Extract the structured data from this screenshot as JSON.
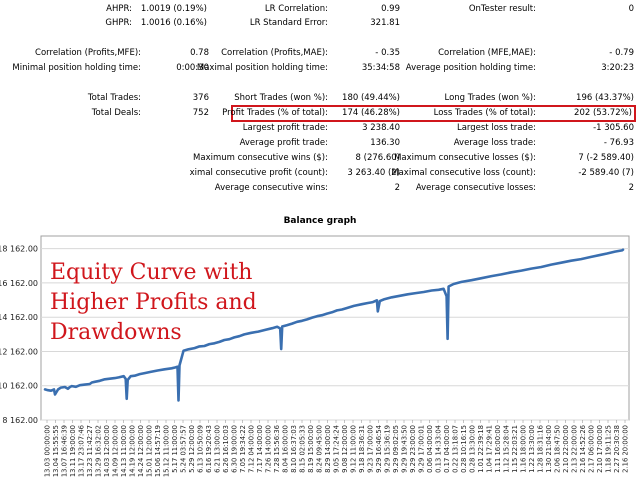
{
  "stats": {
    "r1": [
      {
        "label": "AHPR:",
        "value": "1.0019 (0.19%)"
      },
      {
        "label": "LR Correlation:",
        "value": "0.99"
      },
      {
        "label": "OnTester result:",
        "value": "0"
      }
    ],
    "r2": [
      {
        "label": "GHPR:",
        "value": "1.0016 (0.16%)"
      },
      {
        "label": "LR Standard Error:",
        "value": "321.81"
      }
    ],
    "r3": [
      {
        "label": "Correlation (Profits,MFE):",
        "value": "0.78"
      },
      {
        "label": "Correlation (Profits,MAE):",
        "value": "- 0.35"
      },
      {
        "label": "Correlation (MFE,MAE):",
        "value": "- 0.79"
      }
    ],
    "r4": [
      {
        "label": "Minimal position holding time:",
        "value": "0:00:30"
      },
      {
        "label": "Maximal position holding time:",
        "value": "35:34:58"
      },
      {
        "label": "Average position holding time:",
        "value": "3:20:23"
      }
    ],
    "r5": [
      {
        "label": "Total Trades:",
        "value": "376"
      },
      {
        "label": "Short Trades (won %):",
        "value": "180 (49.44%)"
      },
      {
        "label": "Long Trades (won %):",
        "value": "196 (43.37%)"
      }
    ],
    "r6": [
      {
        "label": "Total Deals:",
        "value": "752"
      },
      {
        "label": "Profit Trades (% of total):",
        "value": "174 (46.28%)"
      },
      {
        "label": "Loss Trades (% of total):",
        "value": "202 (53.72%)"
      }
    ],
    "r7": [
      {
        "label": "Largest profit trade:",
        "value": "3 238.40"
      },
      {
        "label": "Largest loss trade:",
        "value": "-1 305.60"
      }
    ],
    "r8": [
      {
        "label": "Average profit trade:",
        "value": "136.30"
      },
      {
        "label": "Average loss trade:",
        "value": "- 76.93"
      }
    ],
    "r9": [
      {
        "label": "Maximum consecutive wins ($):",
        "value": "8 (276.60)"
      },
      {
        "label": "Maximum consecutive losses ($):",
        "value": "7 (-2 589.40)"
      }
    ],
    "r10": [
      {
        "label": "ximal consecutive profit (count):",
        "value": "3 263.40 (2)"
      },
      {
        "label": "Maximal consecutive loss (count):",
        "value": "-2 589.40 (7)"
      }
    ],
    "r11": [
      {
        "label": "Average consecutive wins:",
        "value": "2"
      },
      {
        "label": "Average consecutive losses:",
        "value": "2"
      }
    ]
  },
  "overlay_text": [
    "Equity Curve with",
    "Higher Profits and",
    "Drawdowns"
  ],
  "colors": {
    "line": "#3a6fb0",
    "highlight": "#d0161c",
    "grid": "#d8d8d8"
  },
  "chart_data": {
    "type": "line",
    "title": "Balance graph",
    "xlabel": "",
    "ylabel": "",
    "y_ticks": [
      "8 162.00",
      "10 162.00",
      "12 162.00",
      "14 162.00",
      "16 162.00",
      "18 162.00"
    ],
    "ylim": [
      8162,
      18900
    ],
    "x_tick_labels": [
      "13.03 00:00:00",
      "13.04 15:55:55",
      "13.07 16:46:39",
      "13.11 19:00:00",
      "13.17 23:07:46",
      "13.23 11:42:27",
      "13.29 16:32:02",
      "14.03 12:00:00",
      "14.09 12:00:00",
      "14.13 11:00:00",
      "14.19 12:00:00",
      "14.24 12:00:00",
      "15.01 12:00:00",
      "15.06 14:57:19",
      "15.12 11:00:00",
      "5.17 11:00:00",
      "5.24 03:57:57",
      "5.29 12:00:00",
      "6.13 10:50:09",
      "6.16 19:20:43",
      "6.21 13:00:00",
      "6.26 16:10:03",
      "6.30 19:00:00",
      "7.05 19:34:22",
      "7.12 04:00:00",
      "7.17 14:00:00",
      "7.26 14:00:00",
      "7.28 15:56:36",
      "8.04 16:00:00",
      "8.10 16:37:03",
      "8.15 02:05:33",
      "8.19 15:00:00",
      "8.24 09:45:00",
      "8.29 14:00:00",
      "9.05 17:24:24",
      "9.08 12:00:00",
      "9.12 11:00:00",
      "9.18 18:36:31",
      "9.23 17:00:00",
      "9.29 16:46:54",
      "9.29 15:36:19",
      "9.29 09:02:05",
      "9.29 19:43:50",
      "9.29 23:00:00",
      "9.29 17:00:01",
      "0.06 04:00:00",
      "0.13 14:33:04",
      "0.17 04:00:00",
      "0.22 13:18:07",
      "0.28 10:16:15",
      "0.28 13:30:00",
      "1.01 22:39:18",
      "1.04 17:29:41",
      "1.11 16:00:00",
      "1.12 15:28:04",
      "1.15 22:03:21",
      "1.16 18:00:00",
      "1.22 13:30:00",
      "1.28 18:31:16",
      "1.30 21:04:00",
      "2.06 18:47:50",
      "2.10 22:00:00",
      "2.13 22:00:00",
      "2.16 14:52:26",
      "2.17 06:00:00",
      "2.10 17:00:00",
      "1.18 19:11:25",
      "2.27 20:30:38",
      "2.16 20:00:00"
    ],
    "x": [
      0,
      3,
      6,
      9,
      10,
      13,
      16,
      20,
      23,
      25,
      27,
      31,
      35,
      40,
      45,
      47,
      50,
      55,
      60,
      65,
      70,
      74,
      79,
      81,
      82,
      83,
      86,
      90,
      95,
      100,
      106,
      113,
      120,
      127,
      131,
      133,
      134,
      135,
      139,
      144,
      150,
      155,
      160,
      165,
      170,
      175,
      180,
      185,
      190,
      195,
      200,
      207,
      214,
      221,
      228,
      233,
      236,
      237,
      238,
      243,
      248,
      253,
      258,
      263,
      268,
      273,
      278,
      283,
      288,
      293,
      298,
      303,
      310,
      318,
      324,
      329,
      333,
      334,
      336,
      340,
      348,
      356,
      364,
      372,
      380,
      388,
      395,
      400,
      403,
      404,
      405,
      410,
      418,
      428,
      438,
      448,
      458,
      468,
      478,
      488,
      498,
      508,
      518,
      528,
      538,
      548,
      556,
      564,
      572,
      579,
      580
    ],
    "y": [
      9950,
      9900,
      9870,
      9950,
      9650,
      9940,
      10050,
      10090,
      9980,
      10090,
      10140,
      10100,
      10190,
      10230,
      10260,
      10350,
      10390,
      10450,
      10540,
      10570,
      10610,
      10650,
      10720,
      10560,
      9400,
      10500,
      10720,
      10750,
      10840,
      10900,
      10970,
      11050,
      11120,
      11180,
      11230,
      11270,
      9300,
      11350,
      12200,
      12290,
      12360,
      12460,
      12480,
      12590,
      12640,
      12720,
      12830,
      12880,
      12980,
      13050,
      13160,
      13250,
      13320,
      13420,
      13520,
      13600,
      13500,
      12300,
      13620,
      13700,
      13790,
      13890,
      13950,
      14030,
      14140,
      14220,
      14280,
      14370,
      14450,
      14560,
      14610,
      14700,
      14820,
      14920,
      14990,
      15040,
      15150,
      14500,
      15100,
      15200,
      15320,
      15410,
      15500,
      15570,
      15630,
      15720,
      15760,
      15820,
      15380,
      12900,
      15950,
      16100,
      16220,
      16320,
      16440,
      16560,
      16660,
      16780,
      16880,
      17000,
      17090,
      17230,
      17340,
      17460,
      17550,
      17680,
      17780,
      17880,
      17990,
      18060,
      18100
    ]
  }
}
